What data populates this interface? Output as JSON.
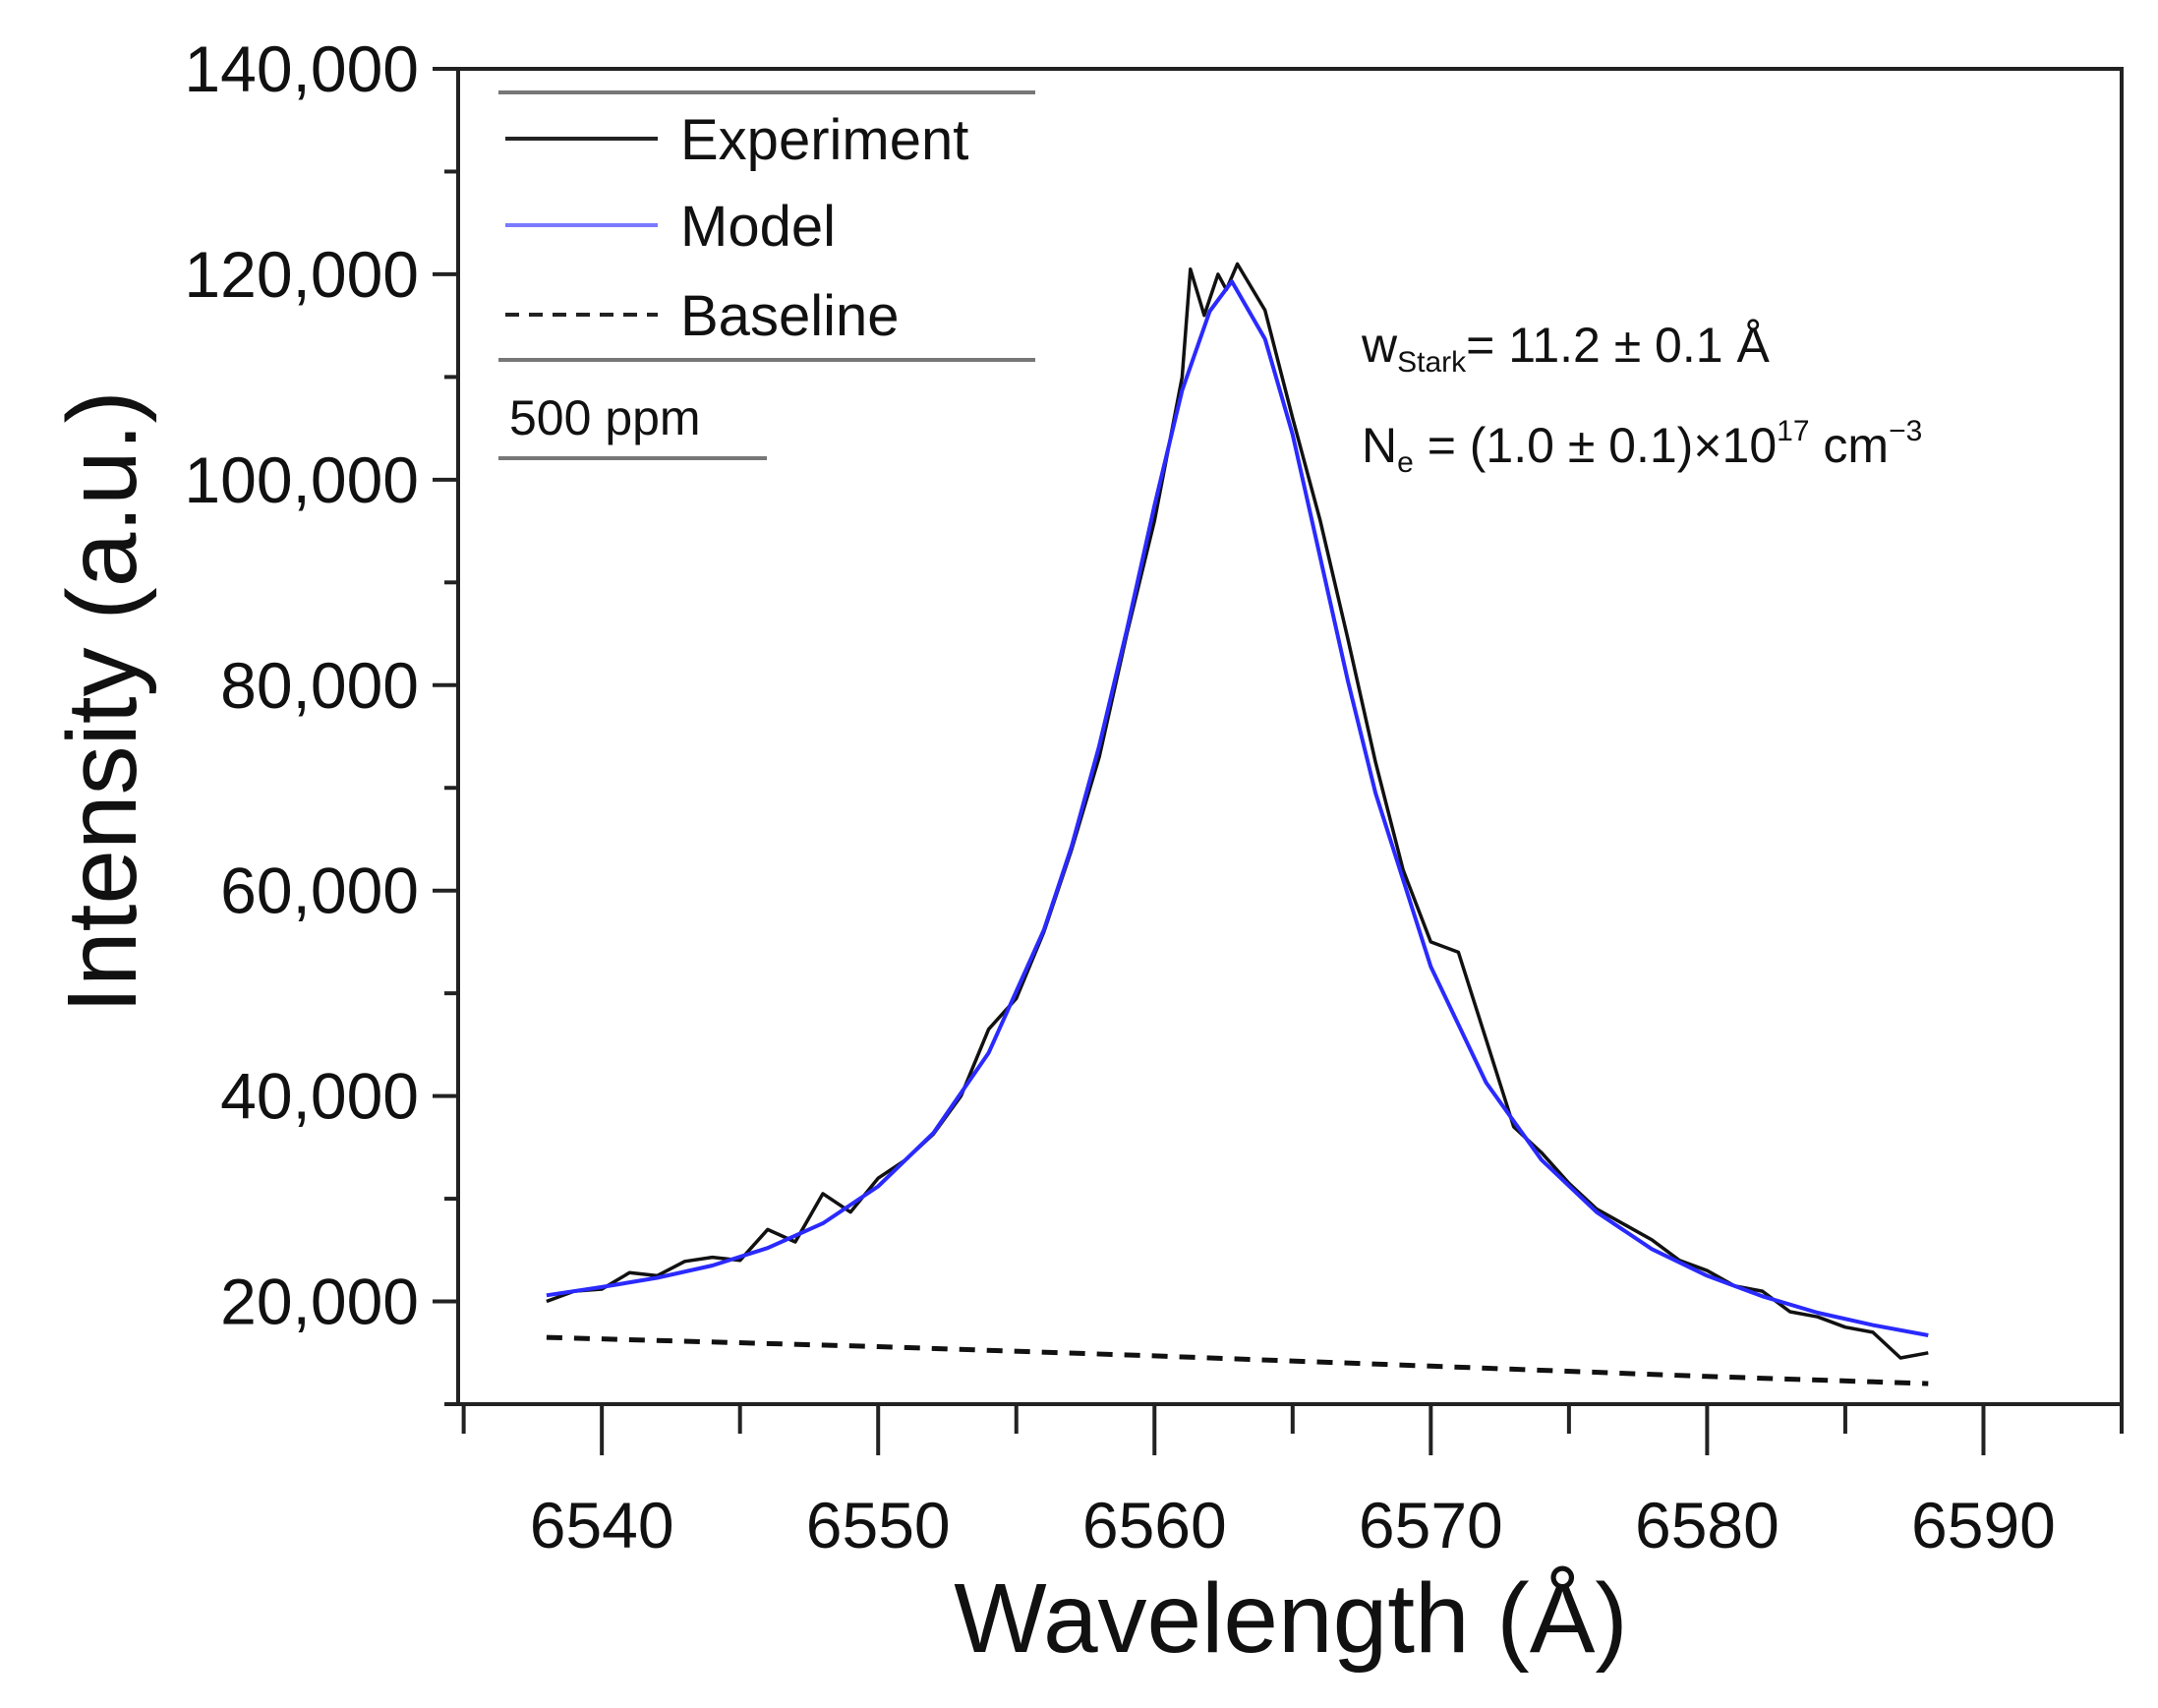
{
  "chart_data": {
    "type": "line",
    "title": "",
    "xlabel": "Wavelength (Å)",
    "ylabel": "Intensity (a.u.)",
    "xlim": [
      6534.8,
      6595
    ],
    "ylim": [
      10000,
      140000
    ],
    "xticks": [
      6540,
      6550,
      6560,
      6570,
      6580,
      6590
    ],
    "yticks": [
      20000,
      40000,
      60000,
      80000,
      100000,
      120000,
      140000
    ],
    "ytick_labels": [
      "20,000",
      "40,000",
      "60,000",
      "80,000",
      "100,000",
      "120,000",
      "140,000"
    ],
    "grid": false,
    "legend": {
      "placement": "top-left",
      "entries": [
        "Experiment",
        "Model",
        "Baseline"
      ],
      "note": "500 ppm"
    },
    "annotations": {
      "w_main": "w",
      "w_sub": "Stark",
      "w_rest": "= 11.2 ± 0.1 Å",
      "n_main": "N",
      "n_sub": "e",
      "n_rest": " = (1.0 ± 0.1)×10",
      "n_sup": "17",
      "n_unit": " cm",
      "n_unit_sup": "−3"
    },
    "series": [
      {
        "name": "Experiment",
        "color": "#111111",
        "x": [
          6538,
          6539,
          6540,
          6541,
          6542,
          6543,
          6544,
          6545,
          6546,
          6547,
          6548,
          6549,
          6550,
          6551,
          6552,
          6553,
          6554,
          6555,
          6556,
          6557,
          6558,
          6559,
          6560,
          6561,
          6561.3,
          6561.8,
          6562.3,
          6562.6,
          6563,
          6564,
          6565,
          6566,
          6567,
          6568,
          6569,
          6570,
          6571,
          6572,
          6573,
          6574,
          6575,
          6576,
          6577,
          6578,
          6579,
          6580,
          6581,
          6582,
          6583,
          6584,
          6585,
          6586,
          6587,
          6588
        ],
        "y": [
          20000,
          21000,
          21200,
          22800,
          22500,
          23900,
          24300,
          24000,
          27000,
          25800,
          30500,
          28700,
          32000,
          33800,
          36300,
          40000,
          46500,
          49500,
          56000,
          64000,
          73000,
          85000,
          96000,
          110000,
          120500,
          116000,
          120000,
          118500,
          121000,
          116500,
          106000,
          96000,
          84500,
          72500,
          62000,
          55000,
          54000,
          45500,
          37000,
          34500,
          31500,
          29000,
          27500,
          26000,
          24000,
          23000,
          21500,
          21000,
          19000,
          18500,
          17500,
          17000,
          14500,
          15000
        ]
      },
      {
        "name": "Model",
        "color": "#2a2aff",
        "x": [
          6538,
          6540,
          6542,
          6544,
          6546,
          6548,
          6550,
          6552,
          6554,
          6556,
          6557,
          6558,
          6559,
          6560,
          6561,
          6562,
          6562.8,
          6564,
          6565,
          6566,
          6567,
          6568,
          6570,
          6572,
          6574,
          6576,
          6578,
          6580,
          6582,
          6584,
          6586,
          6588
        ],
        "y": [
          20600,
          21400,
          22300,
          23500,
          25200,
          27600,
          31200,
          36400,
          44200,
          56200,
          64300,
          74100,
          85400,
          97500,
          108700,
          116400,
          119300,
          113700,
          104400,
          92400,
          80400,
          69500,
          52600,
          41300,
          33800,
          28700,
          25100,
          22500,
          20500,
          18900,
          17700,
          16700
        ]
      },
      {
        "name": "Baseline",
        "color": "#111111",
        "x": [
          6538,
          6550,
          6560,
          6570,
          6580,
          6588
        ],
        "y": [
          16500,
          15600,
          14700,
          13700,
          12700,
          12000
        ]
      }
    ]
  }
}
